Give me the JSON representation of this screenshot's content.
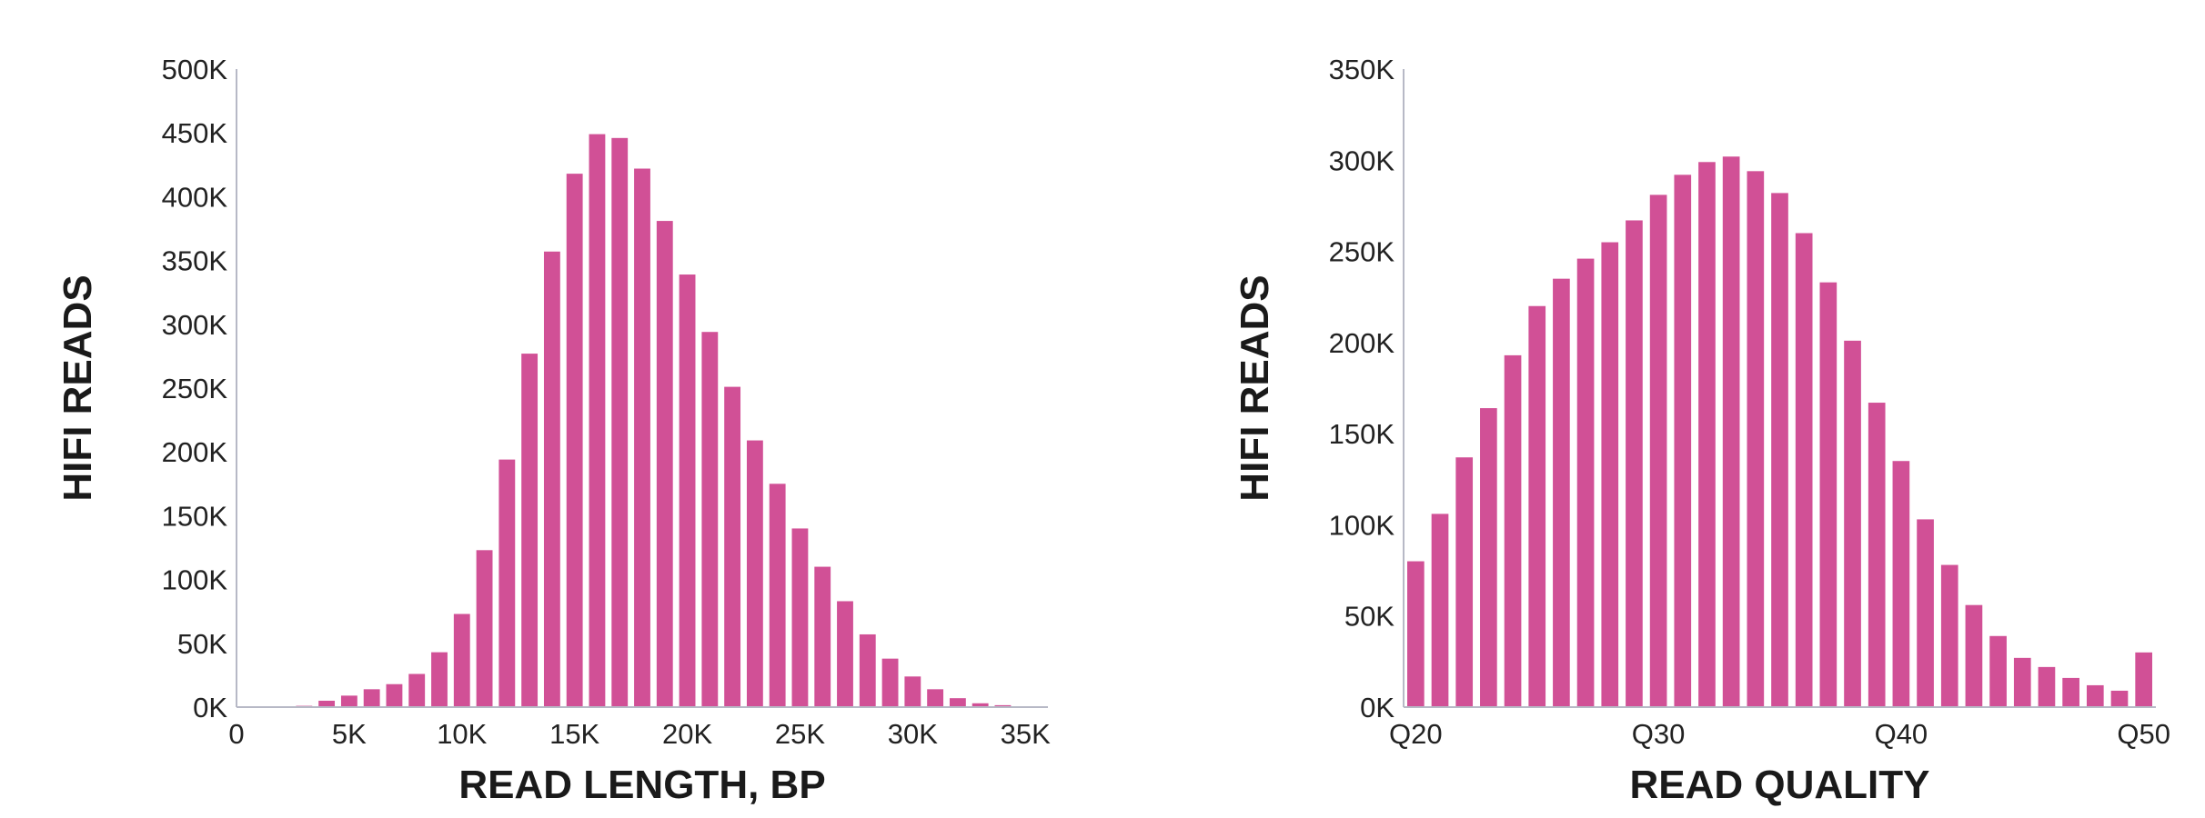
{
  "colors": {
    "bar": "#d15096",
    "axis": "#b7b9c6",
    "text": "#222222"
  },
  "chart_data": [
    {
      "type": "bar",
      "title": "",
      "xlabel": "READ LENGTH, BP",
      "ylabel": "HIFI READS",
      "ylim": [
        0,
        500000
      ],
      "xlim": [
        0,
        36000
      ],
      "grid": false,
      "y_ticks": [
        0,
        50000,
        100000,
        150000,
        200000,
        250000,
        300000,
        350000,
        400000,
        450000,
        500000
      ],
      "y_tick_labels": [
        "0K",
        "50K",
        "100K",
        "150K",
        "200K",
        "250K",
        "300K",
        "350K",
        "400K",
        "450K",
        "500K"
      ],
      "x_ticks": [
        0,
        5000,
        10000,
        15000,
        20000,
        25000,
        30000,
        35000
      ],
      "x_tick_labels": [
        "0",
        "5K",
        "10K",
        "15K",
        "20K",
        "25K",
        "30K",
        "35K"
      ],
      "x": [
        0,
        1000,
        2000,
        3000,
        4000,
        5000,
        6000,
        7000,
        8000,
        9000,
        10000,
        11000,
        12000,
        13000,
        14000,
        15000,
        16000,
        17000,
        18000,
        19000,
        20000,
        21000,
        22000,
        23000,
        24000,
        25000,
        26000,
        27000,
        28000,
        29000,
        30000,
        31000,
        32000,
        33000,
        34000,
        35000
      ],
      "values": [
        0,
        0,
        500,
        1000,
        5000,
        9000,
        14000,
        18000,
        26000,
        43000,
        73000,
        123000,
        194000,
        277000,
        357000,
        418000,
        449000,
        446000,
        422000,
        381000,
        339000,
        294000,
        251000,
        209000,
        175000,
        140000,
        110000,
        83000,
        57000,
        38000,
        24000,
        14000,
        7000,
        3000,
        1500,
        500
      ]
    },
    {
      "type": "bar",
      "title": "",
      "xlabel": "READ QUALITY",
      "ylabel": "HIFI READS",
      "ylim": [
        0,
        350000
      ],
      "xlim": [
        19.5,
        50.5
      ],
      "grid": false,
      "y_ticks": [
        0,
        50000,
        100000,
        150000,
        200000,
        250000,
        300000,
        350000
      ],
      "y_tick_labels": [
        "0K",
        "50K",
        "100K",
        "150K",
        "200K",
        "250K",
        "300K",
        "350K"
      ],
      "x_ticks": [
        20,
        30,
        40,
        50
      ],
      "x_tick_labels": [
        "Q20",
        "Q30",
        "Q40",
        "Q50"
      ],
      "x": [
        20,
        21,
        22,
        23,
        24,
        25,
        26,
        27,
        28,
        29,
        30,
        31,
        32,
        33,
        34,
        35,
        36,
        37,
        38,
        39,
        40,
        41,
        42,
        43,
        44,
        45,
        46,
        47,
        48,
        49,
        50
      ],
      "values": [
        80000,
        106000,
        137000,
        164000,
        193000,
        220000,
        235000,
        246000,
        255000,
        267000,
        281000,
        292000,
        299000,
        302000,
        294000,
        282000,
        260000,
        233000,
        201000,
        167000,
        135000,
        103000,
        78000,
        56000,
        39000,
        27000,
        22000,
        16000,
        12000,
        9000,
        30000
      ]
    }
  ]
}
